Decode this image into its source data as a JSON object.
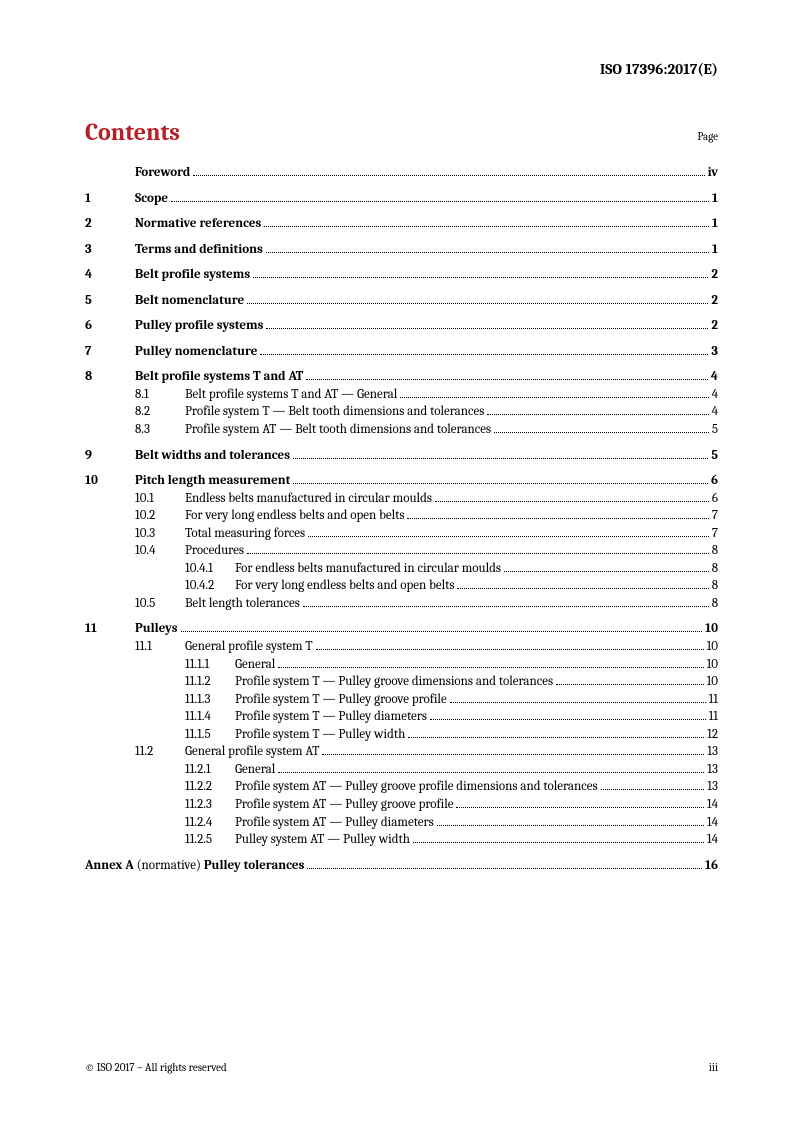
{
  "header": "ISO 17396:2017(E)",
  "title": "Contents",
  "page_label": "Page",
  "footer_left": "© ISO 2017 – All rights reserved",
  "footer_right": "iii",
  "colors": {
    "accent": "#b42025",
    "text": "#000000",
    "bg": "#ffffff"
  },
  "typography": {
    "body_pt": 13,
    "title_pt": 24,
    "header_pt": 15,
    "footer_pt": 11
  },
  "toc": [
    {
      "type": "top",
      "num": "",
      "title": "Foreword",
      "page": "iv",
      "bold": true,
      "spaced": false
    },
    {
      "type": "top",
      "num": "1",
      "title": "Scope",
      "page": "1",
      "bold": true,
      "spaced": true
    },
    {
      "type": "top",
      "num": "2",
      "title": "Normative references",
      "page": "1",
      "bold": true,
      "spaced": true
    },
    {
      "type": "top",
      "num": "3",
      "title": "Terms and definitions",
      "page": "1",
      "bold": true,
      "spaced": true
    },
    {
      "type": "top",
      "num": "4",
      "title": "Belt profile systems",
      "page": "2",
      "bold": true,
      "spaced": true
    },
    {
      "type": "top",
      "num": "5",
      "title": "Belt nomenclature",
      "page": "2",
      "bold": true,
      "spaced": true
    },
    {
      "type": "top",
      "num": "6",
      "title": "Pulley profile systems",
      "page": "2",
      "bold": true,
      "spaced": true
    },
    {
      "type": "top",
      "num": "7",
      "title": "Pulley nomenclature",
      "page": "3",
      "bold": true,
      "spaced": true
    },
    {
      "type": "top",
      "num": "8",
      "title": "Belt profile systems T and AT",
      "page": "4",
      "bold": true,
      "spaced": true
    },
    {
      "type": "sub",
      "num": "8.1",
      "title": "Belt profile systems T and AT — General",
      "page": "4"
    },
    {
      "type": "sub",
      "num": "8.2",
      "title": "Profile system T — Belt tooth dimensions and tolerances",
      "page": "4"
    },
    {
      "type": "sub",
      "num": "8.3",
      "title": "Profile system AT — Belt tooth dimensions and tolerances",
      "page": "5"
    },
    {
      "type": "top",
      "num": "9",
      "title": "Belt widths and tolerances",
      "page": "5",
      "bold": true,
      "spaced": true
    },
    {
      "type": "top",
      "num": "10",
      "title": "Pitch length measurement",
      "page": "6",
      "bold": true,
      "spaced": true
    },
    {
      "type": "sub",
      "num": "10.1",
      "title": "Endless belts manufactured in circular moulds",
      "page": "6"
    },
    {
      "type": "sub",
      "num": "10.2",
      "title": "For very long endless belts and open belts",
      "page": "7"
    },
    {
      "type": "sub",
      "num": "10.3",
      "title": "Total measuring forces",
      "page": "7"
    },
    {
      "type": "sub",
      "num": "10.4",
      "title": "Procedures",
      "page": "8"
    },
    {
      "type": "subsub",
      "num": "10.4.1",
      "title": "For endless belts manufactured in circular moulds",
      "page": "8"
    },
    {
      "type": "subsub",
      "num": "10.4.2",
      "title": "For very long endless belts and open belts",
      "page": "8"
    },
    {
      "type": "sub",
      "num": "10.5",
      "title": "Belt length tolerances",
      "page": "8"
    },
    {
      "type": "top",
      "num": "11",
      "title": "Pulleys",
      "page": "10",
      "bold": true,
      "spaced": true
    },
    {
      "type": "sub",
      "num": "11.1",
      "title": "General profile system T",
      "page": "10"
    },
    {
      "type": "subsub",
      "num": "11.1.1",
      "title": "General",
      "page": "10"
    },
    {
      "type": "subsub",
      "num": "11.1.2",
      "title": "Profile system T — Pulley groove dimensions and tolerances",
      "page": "10"
    },
    {
      "type": "subsub",
      "num": "11.1.3",
      "title": "Profile system T — Pulley groove profile",
      "page": "11"
    },
    {
      "type": "subsub",
      "num": "11.1.4",
      "title": "Profile system T — Pulley diameters",
      "page": "11"
    },
    {
      "type": "subsub",
      "num": "11.1.5",
      "title": "Profile system T — Pulley width",
      "page": "12"
    },
    {
      "type": "sub",
      "num": "11.2",
      "title": "General profile system AT",
      "page": "13"
    },
    {
      "type": "subsub",
      "num": "11.2.1",
      "title": "General",
      "page": "13"
    },
    {
      "type": "subsub",
      "num": "11.2.2",
      "title": "Profile system AT — Pulley groove profile dimensions and tolerances",
      "page": "13"
    },
    {
      "type": "subsub",
      "num": "11.2.3",
      "title": "Profile system AT — Pulley groove profile",
      "page": "14"
    },
    {
      "type": "subsub",
      "num": "11.2.4",
      "title": "Profile system AT — Pulley diameters",
      "page": "14"
    },
    {
      "type": "subsub",
      "num": "11.2.5",
      "title": "Pulley system AT — Pulley width",
      "page": "14"
    },
    {
      "type": "annex",
      "prefix": "Annex A",
      "mid": " (normative) ",
      "title": "Pulley tolerances",
      "page": "16",
      "bold": true,
      "spaced": true
    }
  ]
}
